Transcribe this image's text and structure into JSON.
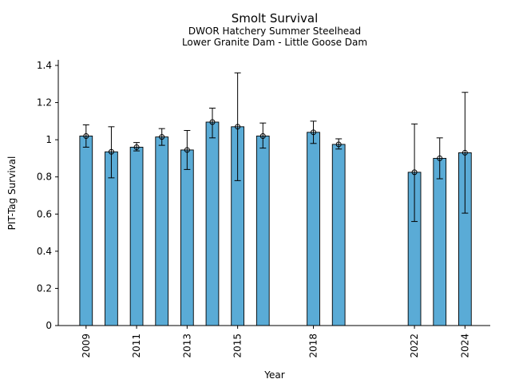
{
  "chart_data": {
    "type": "bar",
    "title": "Smolt Survival",
    "subtitle_lines": [
      "DWOR Hatchery Summer Steelhead",
      "Lower Granite Dam - Little Goose Dam"
    ],
    "xlabel": "Year",
    "ylabel": "PIT-Tag Survival",
    "xlim": [
      2007.9,
      2025
    ],
    "ylim": [
      0,
      1.43
    ],
    "yticks": [
      0,
      0.2,
      0.4,
      0.6,
      0.8,
      1,
      1.2,
      1.4
    ],
    "ytick_labels": [
      "0",
      "0.2",
      "0.4",
      "0.6",
      "0.8",
      "1",
      "1.2",
      "1.4"
    ],
    "xticks": [
      2009,
      2011,
      2013,
      2015,
      2018,
      2022,
      2024
    ],
    "xtick_labels": [
      "2009",
      "2011",
      "2013",
      "2015",
      "2018",
      "2022",
      "2024"
    ],
    "bar_color": "#5aabd6",
    "grid": false,
    "bars": [
      {
        "year": 2009,
        "value": 1.02,
        "lower": 0.96,
        "upper": 1.08
      },
      {
        "year": 2010,
        "value": 0.935,
        "lower": 0.795,
        "upper": 1.07
      },
      {
        "year": 2011,
        "value": 0.96,
        "lower": 0.94,
        "upper": 0.985
      },
      {
        "year": 2012,
        "value": 1.015,
        "lower": 0.97,
        "upper": 1.06
      },
      {
        "year": 2013,
        "value": 0.945,
        "lower": 0.84,
        "upper": 1.05
      },
      {
        "year": 2014,
        "value": 1.095,
        "lower": 1.01,
        "upper": 1.17
      },
      {
        "year": 2015,
        "value": 1.07,
        "lower": 0.78,
        "upper": 1.36
      },
      {
        "year": 2016,
        "value": 1.02,
        "lower": 0.955,
        "upper": 1.09
      },
      {
        "year": 2018,
        "value": 1.04,
        "lower": 0.98,
        "upper": 1.1
      },
      {
        "year": 2019,
        "value": 0.975,
        "lower": 0.95,
        "upper": 1.005
      },
      {
        "year": 2022,
        "value": 0.825,
        "lower": 0.56,
        "upper": 1.085
      },
      {
        "year": 2023,
        "value": 0.9,
        "lower": 0.79,
        "upper": 1.01
      },
      {
        "year": 2024,
        "value": 0.93,
        "lower": 0.605,
        "upper": 1.255
      }
    ]
  }
}
